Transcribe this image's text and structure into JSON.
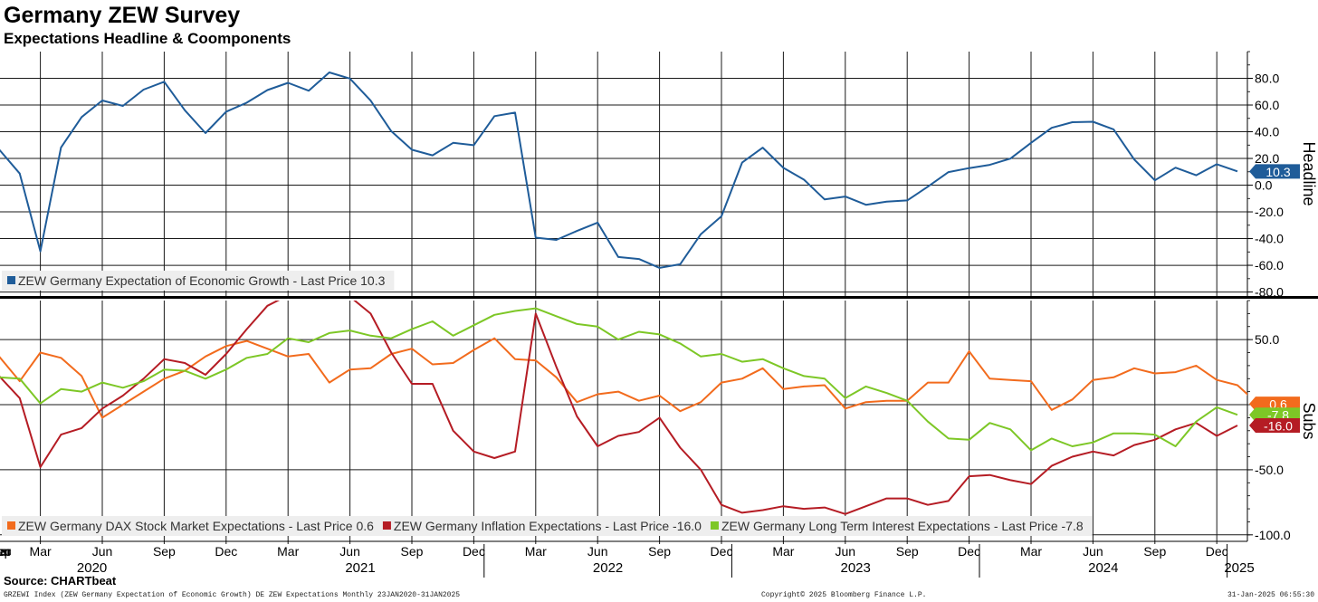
{
  "header": {
    "title": "Germany ZEW Survey",
    "subtitle": "Expectations Headline & Coomponents"
  },
  "source": "Source: CHARTbeat",
  "footer": {
    "left": "GRZEWI Index (ZEW Germany Expectation of Economic Growth) DE ZEW Expectations  Monthly 23JAN2020-31JAN2025",
    "center": "Copyright© 2025 Bloomberg Finance L.P.",
    "right": "31-Jan-2025 06:55:30"
  },
  "chart_data": [
    {
      "type": "line",
      "panel": "top",
      "axis_title": "Headline",
      "yticks": [
        80,
        60,
        40,
        20,
        0,
        -20,
        -40,
        -60,
        -80
      ],
      "ytick_labels": [
        "80.0",
        "60.0",
        "40.0",
        "20.0",
        "0.0",
        "-20.0",
        "-40.0",
        "-60.0",
        "-80.0"
      ],
      "ylim": [
        -83,
        100
      ],
      "grid": true,
      "legend_position": "bottom-left",
      "series": [
        {
          "name": "ZEW Germany Expectation of Economic Growth",
          "legend_label": "ZEW Germany Expectation of Economic Growth - Last Price 10.3",
          "color": "#1f5c99",
          "last_label": "10.3",
          "values": [
            26.7,
            8.7,
            -49.5,
            28.2,
            51.0,
            63.4,
            59.3,
            71.5,
            77.4,
            56.1,
            39.0,
            55.0,
            61.8,
            71.2,
            76.6,
            70.7,
            84.4,
            79.8,
            63.3,
            40.4,
            26.5,
            22.3,
            31.7,
            29.9,
            51.7,
            54.3,
            -39.3,
            -41.0,
            -34.3,
            -28.0,
            -53.8,
            -55.3,
            -61.9,
            -59.2,
            -36.7,
            -23.3,
            16.9,
            28.1,
            13.0,
            4.1,
            -10.7,
            -8.5,
            -14.7,
            -12.3,
            -11.4,
            -1.1,
            9.8,
            12.8,
            15.2,
            19.9,
            31.7,
            42.9,
            47.1,
            47.5,
            41.8,
            19.2,
            3.6,
            13.1,
            7.4,
            15.7,
            10.3
          ]
        }
      ]
    },
    {
      "type": "line",
      "panel": "bottom",
      "axis_title": "Subs",
      "yticks": [
        50,
        -50,
        -100
      ],
      "ytick_labels": [
        "50.0",
        "-50.0",
        "-100.0"
      ],
      "ylim": [
        -105,
        80
      ],
      "grid": true,
      "legend_position": "bottom-left",
      "series": [
        {
          "name": "ZEW Germany DAX Stock Market Expectations",
          "legend_label": "ZEW Germany DAX Stock Market Expectations - Last Price 0.6",
          "color": "#f26b1d",
          "last_label": "0.6",
          "values": [
            37,
            18,
            40,
            36,
            22,
            -10,
            0,
            10,
            20,
            26,
            37,
            45,
            49,
            43,
            37,
            39,
            17,
            27,
            28,
            39,
            43,
            31,
            32,
            42,
            51,
            35,
            34,
            21,
            2,
            8,
            10,
            3,
            7,
            -5,
            2,
            17,
            20,
            28,
            12,
            14,
            15,
            -3,
            2,
            3,
            3,
            17,
            17,
            41,
            20,
            19,
            18,
            -4,
            4,
            19,
            21,
            28,
            24,
            25,
            30,
            19,
            15,
            0.6
          ]
        },
        {
          "name": "ZEW Germany Inflation Expectations",
          "legend_label": "ZEW Germany Inflation Expectations - Last Price -16.0",
          "color": "#b51c24",
          "last_label": "-16.0",
          "values": [
            22,
            5,
            -48,
            -23,
            -18,
            -3,
            7,
            20,
            35,
            32,
            23,
            39,
            58,
            76,
            84,
            81,
            82,
            83,
            70,
            40,
            16,
            16,
            -20,
            -36,
            -41,
            -36,
            70,
            29,
            -9,
            -32,
            -24,
            -21,
            -10,
            -33,
            -50,
            -77,
            -83,
            -81,
            -78,
            -80,
            -79,
            -84,
            -78,
            -72,
            -72,
            -77,
            -74,
            -55,
            -54,
            -58,
            -61,
            -47,
            -40,
            -36,
            -39,
            -31,
            -27,
            -19,
            -14,
            -24,
            -16
          ]
        },
        {
          "name": "ZEW Germany Long Term Interest Expectations",
          "legend_label": "ZEW Germany Long Term Interest Expectations - Last Price -7.8",
          "color": "#7dc726",
          "last_label": "-7.8",
          "values": [
            21,
            20,
            1,
            12,
            10,
            17,
            13,
            18,
            27,
            26,
            20,
            27,
            36,
            39,
            51,
            48,
            55,
            57,
            53,
            51,
            58,
            64,
            53,
            61,
            69,
            72,
            74,
            68,
            62,
            60,
            50,
            56,
            54,
            47,
            37,
            39,
            33,
            35,
            28,
            22,
            20,
            5,
            14,
            9,
            3,
            -13,
            -26,
            -27,
            -14,
            -19,
            -35,
            -26,
            -32,
            -29,
            -22,
            -22,
            -23,
            -32,
            -13,
            -2,
            -7.8
          ]
        }
      ]
    }
  ],
  "x_axis": {
    "month_labels": [
      "Mar",
      "Jun",
      "Sep",
      "Dec",
      "Mar",
      "Jun",
      "Sep",
      "Dec",
      "Mar",
      "Jun",
      "Sep",
      "Dec",
      "Mar",
      "Jun",
      "Sep",
      "Dec",
      "Mar",
      "Jun",
      "Sep",
      "Dec",
      "Mar",
      "Jun",
      "Sep",
      "Dec"
    ],
    "year_labels": [
      "2020",
      "2021",
      "2022",
      "2023",
      "2024",
      "2025"
    ]
  },
  "colors": {
    "grid": "#1a1a1a",
    "separator": "#000000",
    "legend_bg": "#eeeeee"
  }
}
